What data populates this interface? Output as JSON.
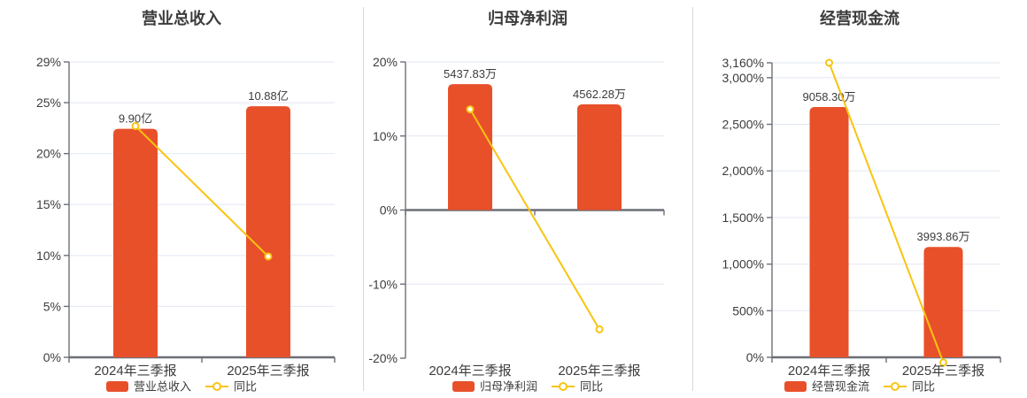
{
  "page": {
    "background": "#ffffff"
  },
  "colors": {
    "bar": "#e8502a",
    "line": "#f8c411",
    "marker_fill": "#ffffff",
    "axis": "#6b6f77",
    "grid": "#e2e8f2",
    "divider": "#d8d8d8",
    "text": "#333333",
    "tick_text": "#3c3c3c"
  },
  "chart_data": [
    {
      "type": "bar+line",
      "title": "营业总收入",
      "categories": [
        "2024年三季报",
        "2025年三季报"
      ],
      "bar_series": {
        "name": "营业总收入",
        "unit": "亿",
        "values": [
          9.9,
          10.88
        ],
        "labels": [
          "9.90亿",
          "10.88亿"
        ]
      },
      "line_series": {
        "name": "同比",
        "unit": "%",
        "values": [
          22.7,
          9.9
        ]
      },
      "y_axis": {
        "min": 0,
        "max": 29,
        "ticks": [
          {
            "label": "0%",
            "value": 0
          },
          {
            "label": "5%",
            "value": 5
          },
          {
            "label": "10%",
            "value": 10
          },
          {
            "label": "15%",
            "value": 15
          },
          {
            "label": "20%",
            "value": 20
          },
          {
            "label": "25%",
            "value": 25
          },
          {
            "label": "29%",
            "value": 29
          }
        ]
      },
      "legend": [
        {
          "label": "营业总收入",
          "type": "bar"
        },
        {
          "label": "同比",
          "type": "line"
        }
      ]
    },
    {
      "type": "bar+line",
      "title": "归母净利润",
      "categories": [
        "2024年三季报",
        "2025年三季报"
      ],
      "bar_series": {
        "name": "归母净利润",
        "unit": "万",
        "values": [
          5437.83,
          4562.28
        ],
        "labels": [
          "5437.83万",
          "4562.28万"
        ]
      },
      "line_series": {
        "name": "同比",
        "unit": "%",
        "values": [
          13.6,
          -16.1
        ]
      },
      "y_axis": {
        "min": -20,
        "max": 20,
        "ticks": [
          {
            "label": "-20%",
            "value": -20
          },
          {
            "label": "-10%",
            "value": -10
          },
          {
            "label": "0%",
            "value": 0
          },
          {
            "label": "10%",
            "value": 10
          },
          {
            "label": "20%",
            "value": 20
          }
        ]
      },
      "legend": [
        {
          "label": "归母净利润",
          "type": "bar"
        },
        {
          "label": "同比",
          "type": "line"
        }
      ]
    },
    {
      "type": "bar+line",
      "title": "经营现金流",
      "categories": [
        "2024年三季报",
        "2025年三季报"
      ],
      "bar_series": {
        "name": "经营现金流",
        "unit": "万",
        "values": [
          9058.3,
          3993.86
        ],
        "labels": [
          "9058.30万",
          "3993.86万"
        ]
      },
      "line_series": {
        "name": "同比",
        "unit": "%",
        "values": [
          3160,
          -55.9
        ]
      },
      "y_axis": {
        "min": 0,
        "max": 3160,
        "ticks": [
          {
            "label": "0%",
            "value": 0
          },
          {
            "label": "500%",
            "value": 500
          },
          {
            "label": "1,000%",
            "value": 1000
          },
          {
            "label": "1,500%",
            "value": 1500
          },
          {
            "label": "2,000%",
            "value": 2000
          },
          {
            "label": "2,500%",
            "value": 2500
          },
          {
            "label": "3,000%",
            "value": 3000
          },
          {
            "label": "3,160%",
            "value": 3160
          }
        ]
      },
      "legend": [
        {
          "label": "经营现金流",
          "type": "bar"
        },
        {
          "label": "同比",
          "type": "line"
        }
      ]
    }
  ]
}
